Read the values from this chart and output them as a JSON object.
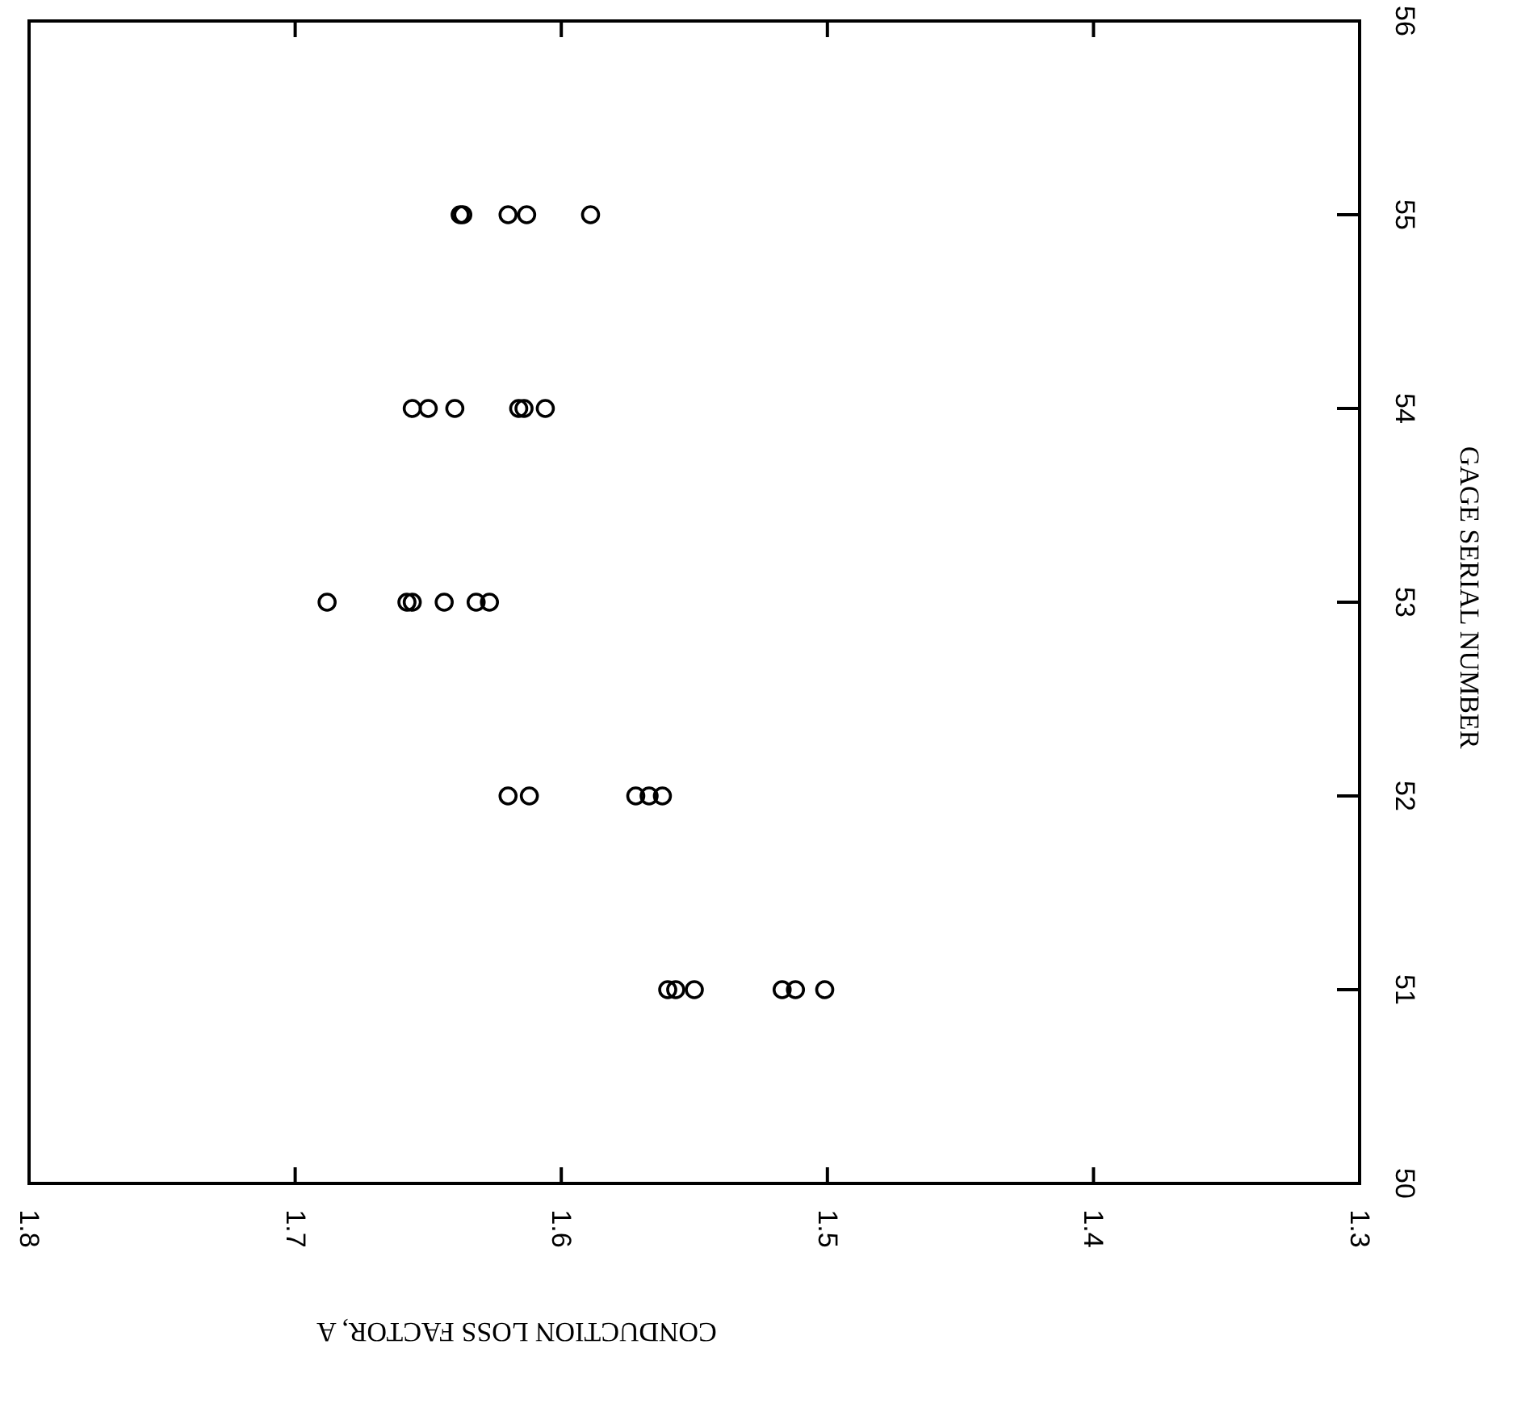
{
  "chart_data": {
    "type": "scatter",
    "xlabel": "CONDUCTION LOSS FACTOR, A",
    "ylabel": "GAGE SERIAL NUMBER",
    "xlim": [
      1.8,
      1.3
    ],
    "xticks": [
      1.8,
      1.7,
      1.6,
      1.5,
      1.4,
      1.3
    ],
    "ylim": [
      50,
      56
    ],
    "yticks": [
      50,
      51,
      52,
      53,
      54,
      55,
      56
    ],
    "marker": "circle",
    "series": [
      {
        "color": "#000000",
        "x": [
          1.638,
          1.637,
          1.62,
          1.613,
          1.589,
          1.656,
          1.65,
          1.64,
          1.616,
          1.614,
          1.606,
          1.688,
          1.658,
          1.656,
          1.644,
          1.632,
          1.627,
          1.62,
          1.612,
          1.572,
          1.567,
          1.562,
          1.56,
          1.557,
          1.55,
          1.517,
          1.512,
          1.501
        ],
        "values": [
          55,
          55,
          55,
          55,
          55,
          54,
          54,
          54,
          54,
          54,
          54,
          53,
          53,
          53,
          53,
          53,
          53,
          52,
          52,
          52,
          52,
          52,
          51,
          51,
          51,
          51,
          51,
          51
        ]
      }
    ]
  }
}
